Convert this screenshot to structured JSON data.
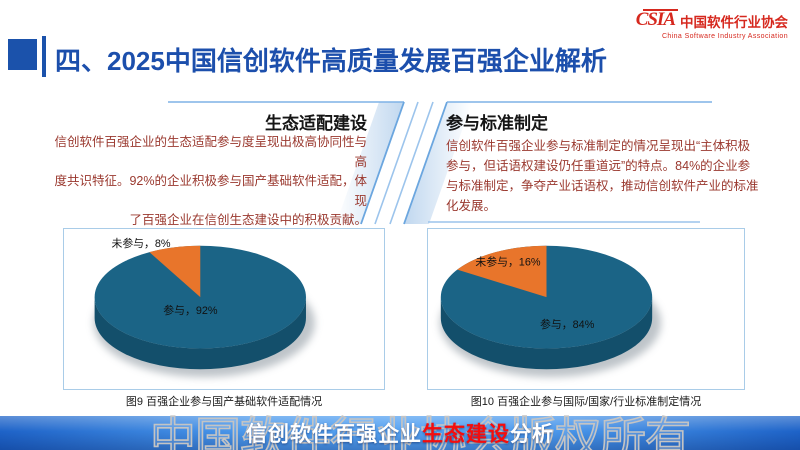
{
  "logo": {
    "mark": "CSIA",
    "name_cn": "中国软件行业协会",
    "name_en": "China Software Industry Association"
  },
  "title": "四、2025中国信创软件高质量发展百强企业解析",
  "panels": [
    {
      "heading": "生态适配建设",
      "body": "信创软件百强企业的生态适配参与度呈现出极高协同性与高\n度共识特征。92%的企业积极参与国产基础软件适配，体现\n了百强企业在信创生态建设中的积极贡献。"
    },
    {
      "heading": "参与标准制定",
      "body": "信创软件百强企业参与标准制定的情况呈现出“主体积极\n参与，但话语权建设仍任重道远”的特点。84%的企业参\n与标准制定，争夺产业话语权，推动信创软件产业的标准\n化发展。"
    }
  ],
  "chart_data": [
    {
      "type": "pie",
      "style": "3d",
      "caption": "图9 百强企业参与国产基础软件适配情况",
      "slices": [
        {
          "label": "参与",
          "value": 92,
          "data_label": "参与，92%",
          "color": "#1B6486"
        },
        {
          "label": "未参与",
          "value": 8,
          "data_label": "未参与，8%",
          "color": "#E8752B"
        }
      ],
      "side_color": "#134F6B",
      "label_color": "#111111",
      "layout_hints": {
        "start_angle_deg": 0,
        "direction": "clockwise",
        "legend": "none",
        "labels": "on-chart"
      }
    },
    {
      "type": "pie",
      "style": "3d",
      "caption": "图10 百强企业参与国际/国家/行业标准制定情况",
      "slices": [
        {
          "label": "参与",
          "value": 84,
          "data_label": "参与，84%",
          "color": "#1B6486"
        },
        {
          "label": "未参与",
          "value": 16,
          "data_label": "未参与，16%",
          "color": "#E8752B"
        }
      ],
      "side_color": "#134F6B",
      "label_color": "#111111",
      "layout_hints": {
        "start_angle_deg": 0,
        "direction": "clockwise",
        "legend": "none",
        "labels": "on-chart"
      }
    }
  ],
  "footer": {
    "segments": [
      {
        "text": "信创软件百强企业",
        "color": "#FFFFFF"
      },
      {
        "text": "生态建设",
        "color": "#F50D0D"
      },
      {
        "text": "分析",
        "color": "#FFFFFF"
      }
    ]
  },
  "watermark": "中国软件行业协会版权所有",
  "colors": {
    "title_blue": "#1C4FAC",
    "accent_line_blue": "#7FB2E6",
    "body_text_red": "#9A382E",
    "logo_red": "#D6281E",
    "footer_blue": "#2F7BDB",
    "pie_teal": "#1B6486",
    "pie_orange": "#E8752B"
  }
}
